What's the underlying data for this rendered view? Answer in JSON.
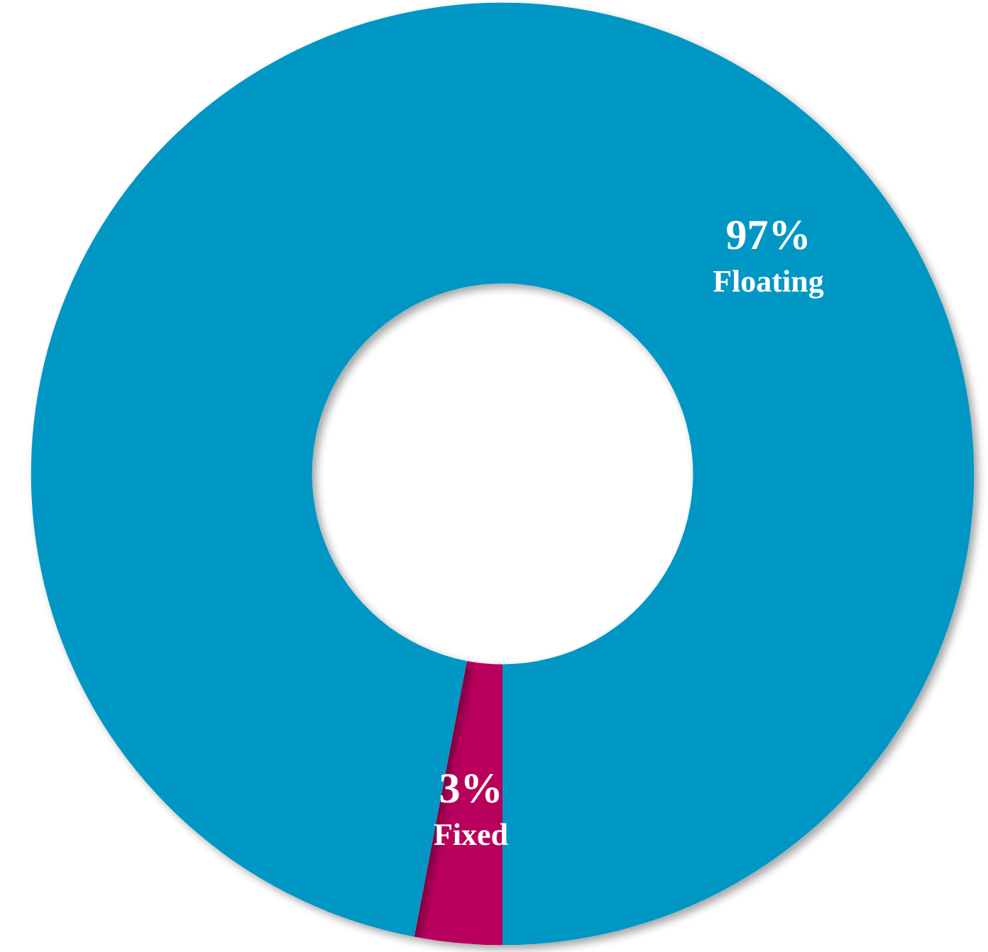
{
  "chart_data": {
    "type": "donut",
    "categories": [
      "Fixed",
      "Floating"
    ],
    "values": [
      3,
      97
    ],
    "colors": [
      "#b8005c",
      "#0097c4"
    ],
    "value_labels": [
      "3%",
      "97%"
    ],
    "legend": false
  }
}
